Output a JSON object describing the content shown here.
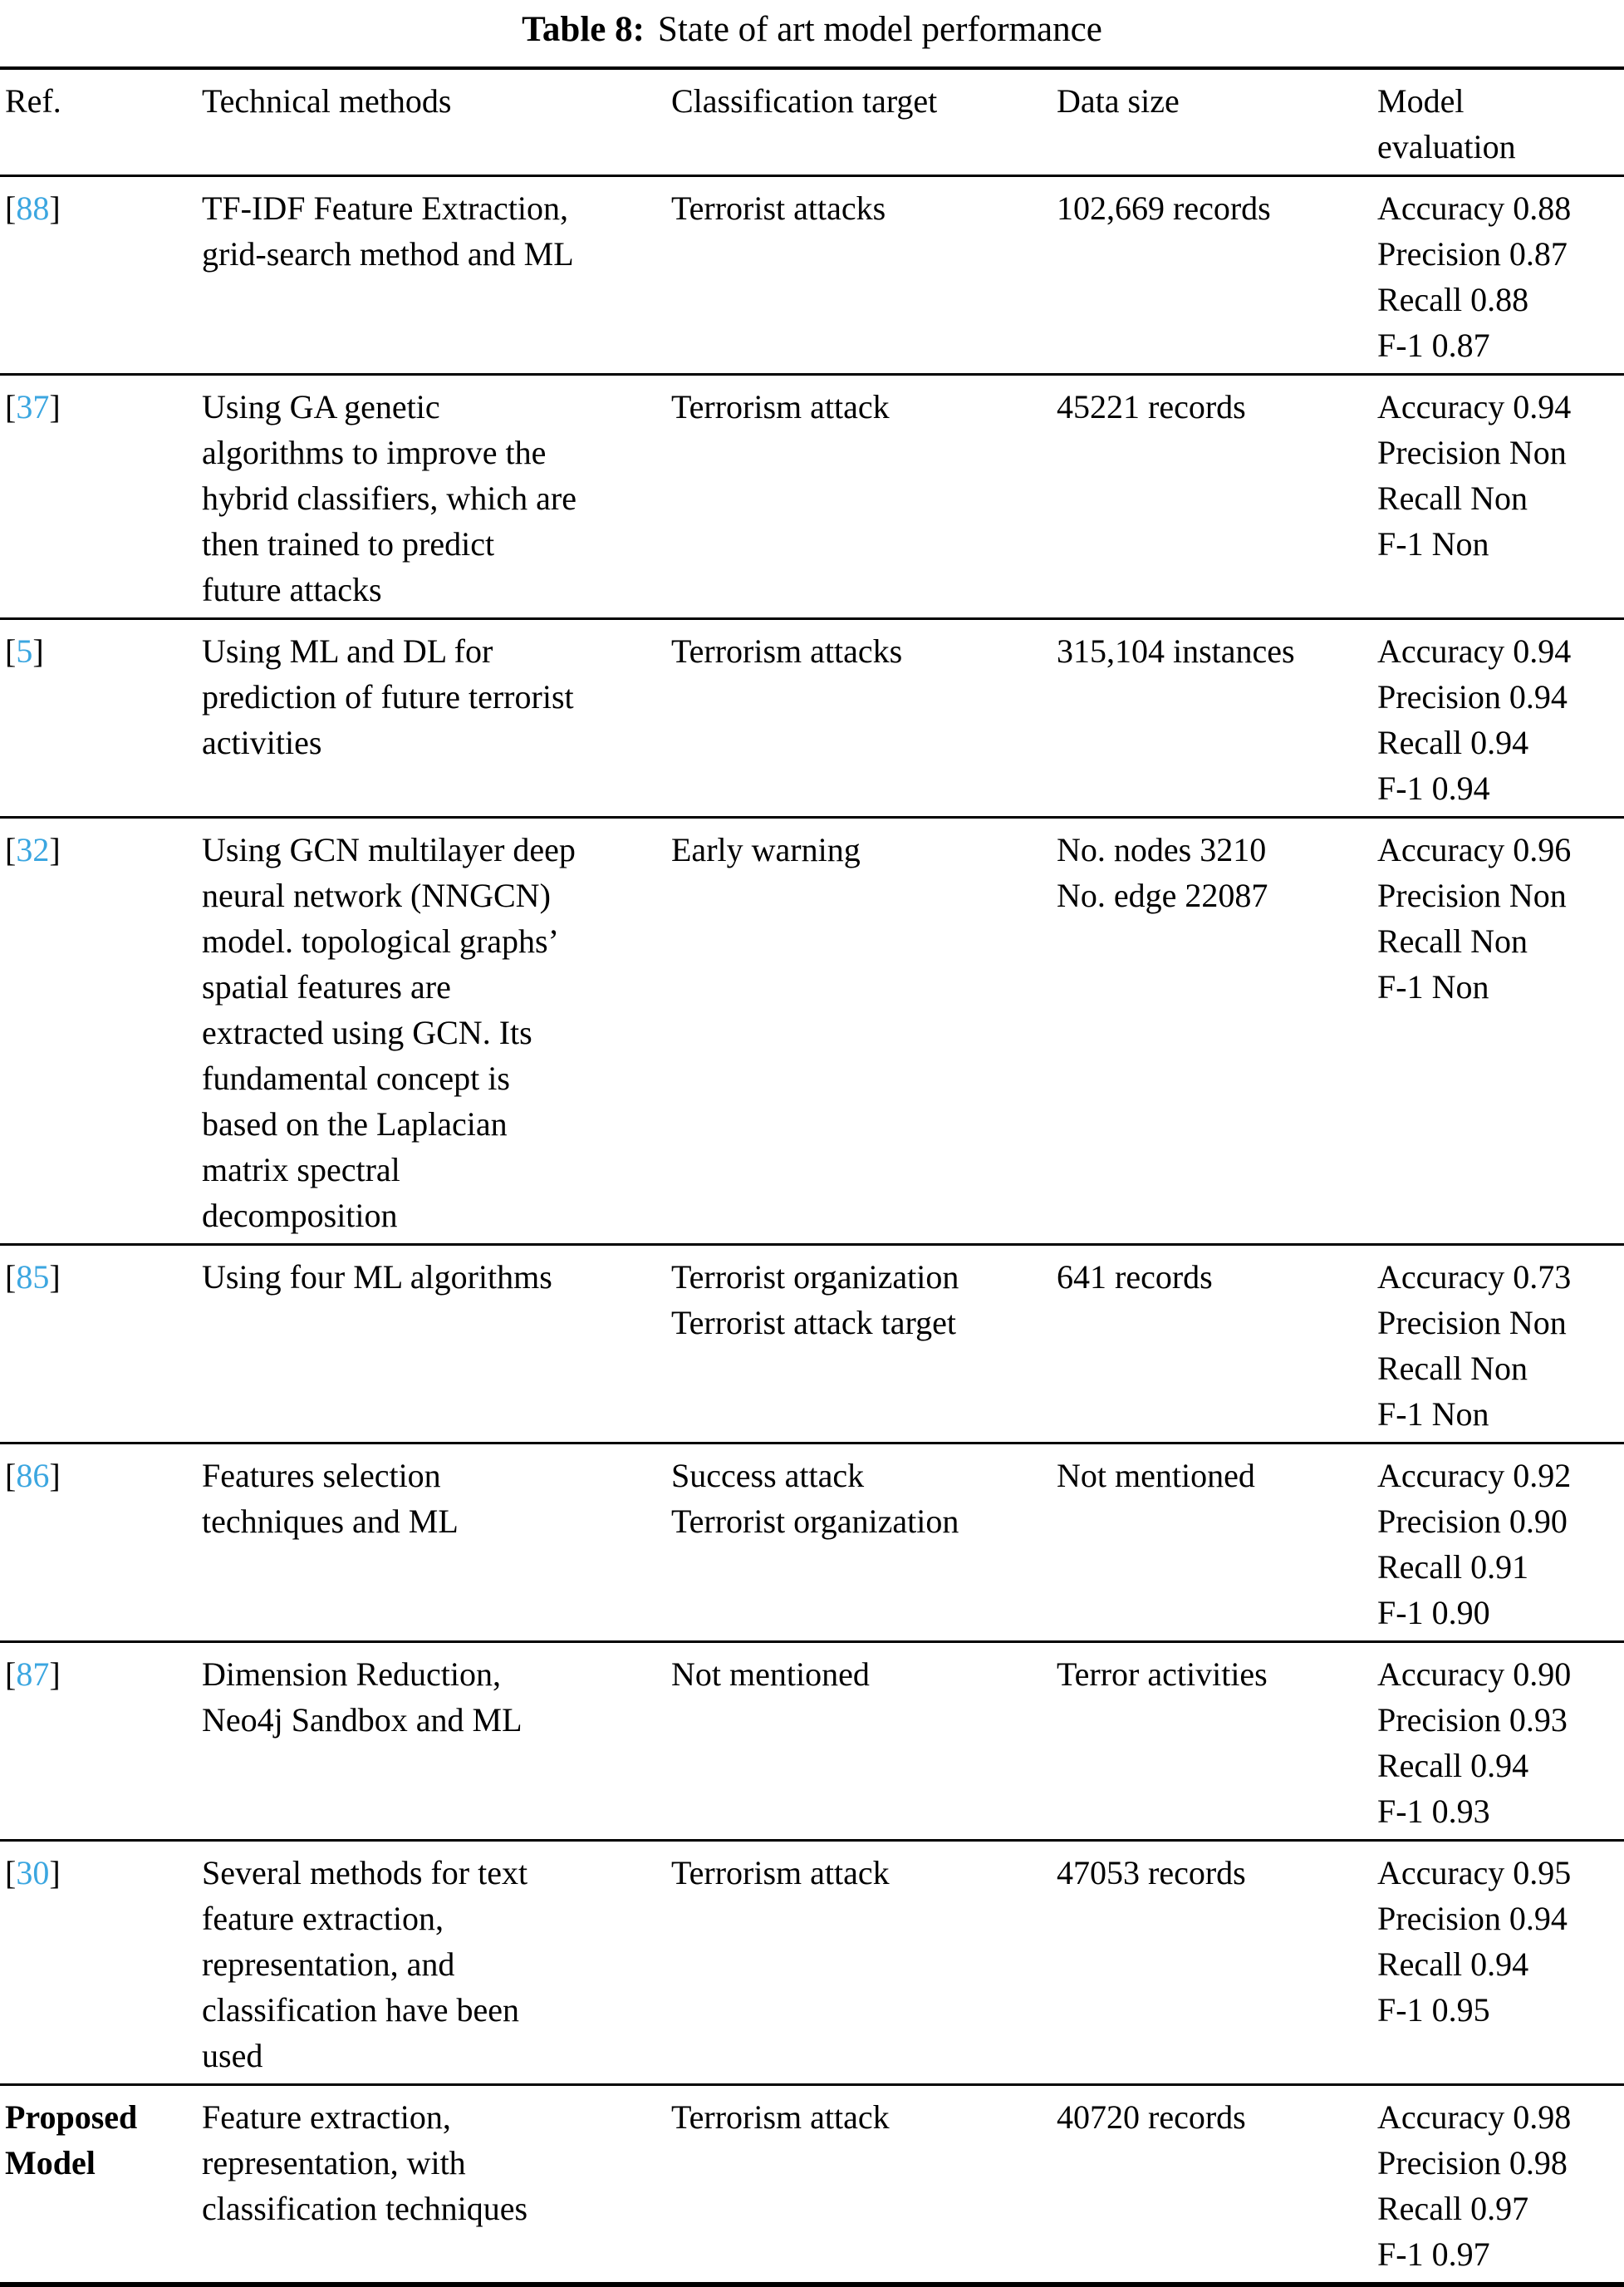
{
  "caption": {
    "label": "Table 8:",
    "title": "State of art model performance"
  },
  "colors": {
    "citation_link": "#3BA6E0",
    "text": "#000000",
    "rule": "#000000",
    "background": "#ffffff"
  },
  "table": {
    "columns": [
      {
        "id": "ref",
        "label": "Ref."
      },
      {
        "id": "methods",
        "label": "Technical methods"
      },
      {
        "id": "target",
        "label": "Classification target"
      },
      {
        "id": "data_size",
        "label": "Data size"
      },
      {
        "id": "evaluation",
        "label": "Model evaluation"
      }
    ],
    "rows": [
      {
        "ref": {
          "text": "88",
          "is_citation": true
        },
        "methods": "TF-IDF Feature Extraction, grid-search method and ML",
        "target": [
          "Terrorist attacks"
        ],
        "data_size": [
          "102,669 records"
        ],
        "evaluation": [
          "Accuracy 0.88",
          "Precision 0.87",
          "Recall 0.88",
          "F-1 0.87"
        ]
      },
      {
        "ref": {
          "text": "37",
          "is_citation": true
        },
        "methods": "Using GA genetic algorithms to improve the hybrid classifiers, which are then trained to predict future attacks",
        "target": [
          "Terrorism attack"
        ],
        "data_size": [
          "45221 records"
        ],
        "evaluation": [
          "Accuracy 0.94",
          "Precision Non",
          "Recall Non",
          "F-1 Non"
        ]
      },
      {
        "ref": {
          "text": "5",
          "is_citation": true
        },
        "methods": "Using ML and DL for prediction of future terrorist activities",
        "target": [
          "Terrorism attacks"
        ],
        "data_size": [
          "315,104 instances"
        ],
        "evaluation": [
          "Accuracy 0.94",
          "Precision 0.94",
          "Recall 0.94",
          "F-1 0.94"
        ]
      },
      {
        "ref": {
          "text": "32",
          "is_citation": true
        },
        "methods": "Using GCN multilayer deep neural network (NNGCN) model. topological graphs’ spatial features are extracted using GCN. Its fundamental concept is based on the Laplacian matrix spectral decomposition",
        "target": [
          "Early warning"
        ],
        "data_size": [
          "No. nodes 3210",
          "No. edge 22087"
        ],
        "evaluation": [
          "Accuracy 0.96",
          "Precision Non",
          "Recall Non",
          "F-1 Non"
        ]
      },
      {
        "ref": {
          "text": "85",
          "is_citation": true
        },
        "methods": "Using four ML algorithms",
        "target": [
          "Terrorist organization",
          "Terrorist attack target"
        ],
        "data_size": [
          "641 records"
        ],
        "evaluation": [
          "Accuracy 0.73",
          "Precision Non",
          "Recall Non",
          "F-1 Non"
        ]
      },
      {
        "ref": {
          "text": "86",
          "is_citation": true
        },
        "methods": "Features selection techniques and ML",
        "target": [
          "Success attack",
          "Terrorist organization"
        ],
        "data_size": [
          "Not mentioned"
        ],
        "evaluation": [
          "Accuracy 0.92",
          "Precision 0.90",
          "Recall 0.91",
          "F-1 0.90"
        ]
      },
      {
        "ref": {
          "text": "87",
          "is_citation": true
        },
        "methods": "Dimension Reduction, Neo4j Sandbox and ML",
        "target": [
          "Not mentioned"
        ],
        "data_size": [
          "Terror activities"
        ],
        "evaluation": [
          "Accuracy 0.90",
          "Precision 0.93",
          "Recall 0.94",
          "F-1 0.93"
        ]
      },
      {
        "ref": {
          "text": "30",
          "is_citation": true
        },
        "methods": "Several methods for text feature extraction, representation, and classification have been used",
        "target": [
          "Terrorism attack"
        ],
        "data_size": [
          "47053 records"
        ],
        "evaluation": [
          "Accuracy 0.95",
          "Precision 0.94",
          "Recall 0.94",
          "F-1 0.95"
        ]
      },
      {
        "ref": {
          "text": "Proposed Model",
          "is_citation": false
        },
        "methods": "Feature extraction, representation, with classification techniques",
        "target": [
          "Terrorism attack"
        ],
        "data_size": [
          "40720 records"
        ],
        "evaluation": [
          "Accuracy 0.98",
          "Precision 0.98",
          "Recall 0.97",
          "F-1 0.97"
        ]
      }
    ]
  }
}
